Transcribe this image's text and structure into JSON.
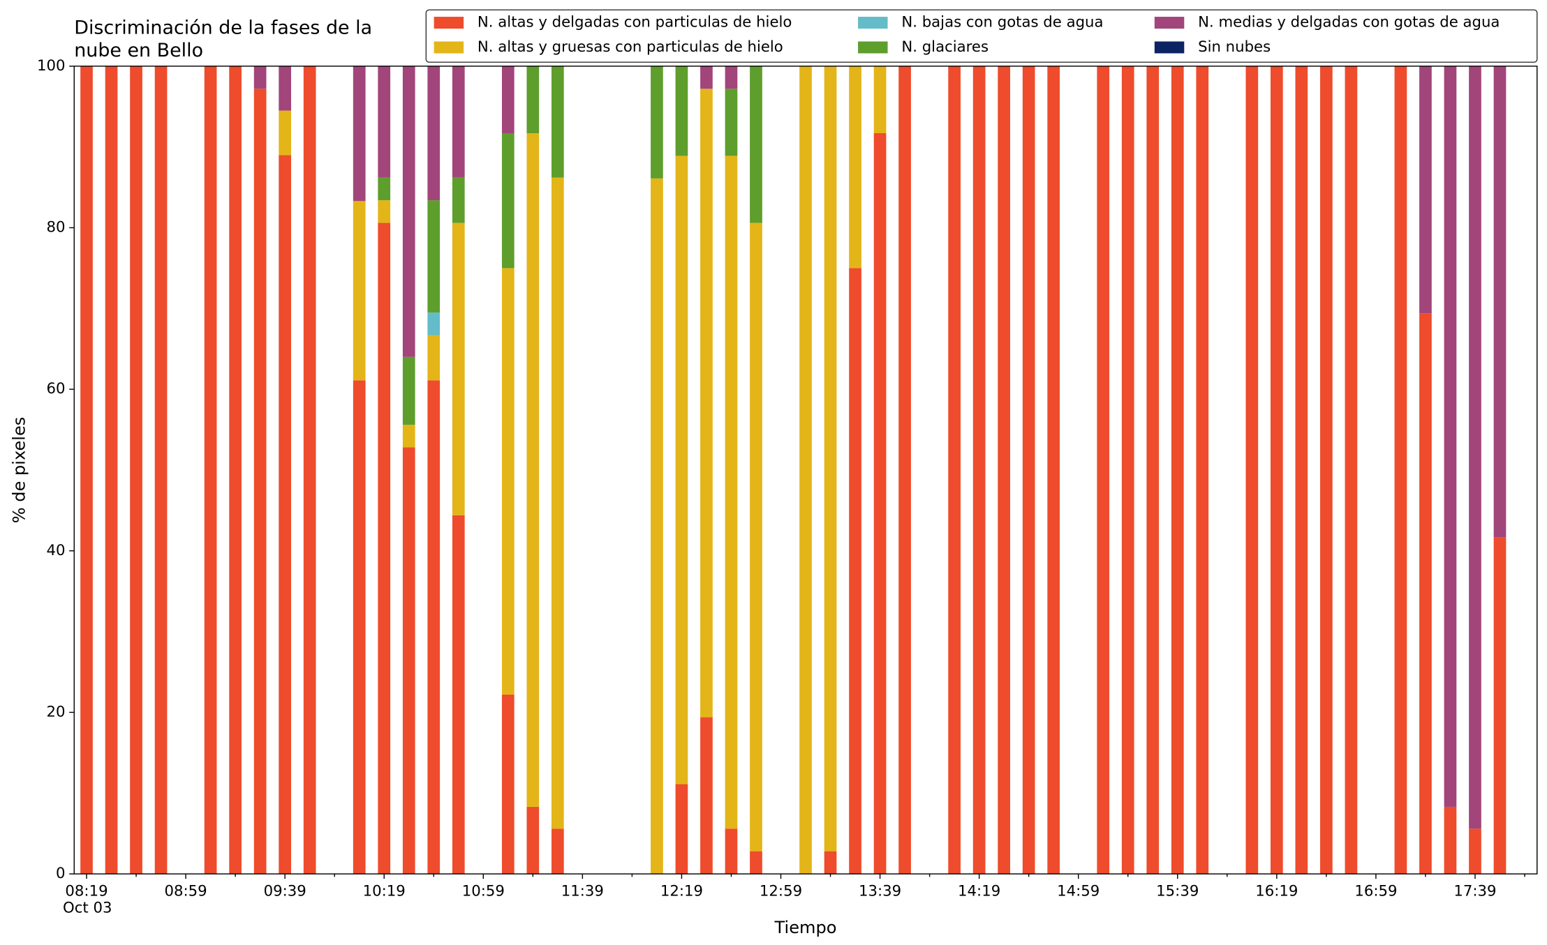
{
  "chart_data": {
    "type": "bar",
    "stacked": true,
    "title": [
      "Discriminación de la fases de la",
      "nube en Bello"
    ],
    "xlabel": "Tiempo",
    "ylabel": "% de pixeles",
    "xdate": "Oct 03",
    "x": [
      "08:19",
      "08:29",
      "08:39",
      "08:49",
      "08:59",
      "09:09",
      "09:19",
      "09:29",
      "09:39",
      "09:49",
      "09:59",
      "10:09",
      "10:19",
      "10:29",
      "10:39",
      "10:49",
      "10:59",
      "11:09",
      "11:19",
      "11:29",
      "11:39",
      "11:49",
      "11:59",
      "12:09",
      "12:19",
      "12:29",
      "12:39",
      "12:49",
      "12:59",
      "13:09",
      "13:19",
      "13:29",
      "13:39",
      "13:49",
      "13:59",
      "14:09",
      "14:19",
      "14:29",
      "14:39",
      "14:49",
      "14:59",
      "15:09",
      "15:19",
      "15:29",
      "15:39",
      "15:49",
      "15:59",
      "16:09",
      "16:19",
      "16:29",
      "16:39",
      "16:49",
      "16:59",
      "17:09",
      "17:19",
      "17:29",
      "17:39",
      "17:49"
    ],
    "xlim": [
      "08:14",
      "18:04"
    ],
    "xticks": [
      "08:19",
      "08:59",
      "09:39",
      "10:19",
      "10:59",
      "11:39",
      "12:19",
      "12:59",
      "13:39",
      "14:19",
      "14:59",
      "15:39",
      "16:19",
      "16:59",
      "17:39"
    ],
    "xticks_minor": [
      "08:39",
      "09:19",
      "09:59",
      "10:39",
      "11:19",
      "11:59",
      "12:39",
      "13:19",
      "13:59",
      "14:39",
      "15:19",
      "15:59",
      "16:39",
      "17:19",
      "17:59"
    ],
    "ylim": [
      0,
      100
    ],
    "yticks": [
      0,
      20,
      40,
      60,
      80,
      100
    ],
    "legend": "upper right",
    "series": [
      {
        "name": "N. altas y delgadas con particulas de hielo",
        "color": "#ee4c2c",
        "values": [
          100,
          100,
          100,
          100,
          null,
          100,
          100,
          97.2,
          89,
          100,
          null,
          61.1,
          80.6,
          52.8,
          61.1,
          44.4,
          null,
          22.2,
          8.3,
          5.6,
          null,
          null,
          null,
          0,
          11.1,
          19.4,
          5.6,
          2.8,
          null,
          0,
          2.8,
          75,
          91.7,
          100,
          null,
          100,
          100,
          100,
          100,
          100,
          null,
          100,
          100,
          100,
          100,
          100,
          null,
          100,
          100,
          100,
          100,
          100,
          null,
          100,
          69.4,
          8.3,
          5.6,
          41.7
        ]
      },
      {
        "name": "N. altas y gruesas con particulas de hielo",
        "color": "#e4b518",
        "values": [
          0,
          0,
          0,
          0,
          null,
          0,
          0,
          0,
          5.5,
          0,
          null,
          22.2,
          2.8,
          2.8,
          5.6,
          36.2,
          null,
          52.8,
          83.4,
          80.6,
          null,
          null,
          null,
          86.1,
          77.8,
          77.8,
          83.3,
          77.8,
          null,
          100,
          97.2,
          25,
          8.3,
          0,
          null,
          0,
          0,
          0,
          0,
          0,
          null,
          0,
          0,
          0,
          0,
          0,
          null,
          0,
          0,
          0,
          0,
          0,
          null,
          0,
          0,
          0,
          0,
          0
        ]
      },
      {
        "name": "N. bajas con gotas de agua",
        "color": "#63bcc8",
        "values": [
          0,
          0,
          0,
          0,
          null,
          0,
          0,
          0,
          0,
          0,
          null,
          0,
          0,
          0,
          2.8,
          0,
          null,
          0,
          0,
          0,
          null,
          null,
          null,
          0,
          0,
          0,
          0,
          0,
          null,
          0,
          0,
          0,
          0,
          0,
          null,
          0,
          0,
          0,
          0,
          0,
          null,
          0,
          0,
          0,
          0,
          0,
          null,
          0,
          0,
          0,
          0,
          0,
          null,
          0,
          0,
          0,
          0,
          0
        ]
      },
      {
        "name": "N. glaciares",
        "color": "#5e9e2c",
        "values": [
          0,
          0,
          0,
          0,
          null,
          0,
          0,
          0,
          0,
          0,
          null,
          0,
          2.8,
          8.4,
          13.9,
          5.6,
          null,
          16.7,
          8.3,
          13.8,
          null,
          null,
          null,
          13.9,
          11.1,
          0,
          8.3,
          19.4,
          null,
          0,
          0,
          0,
          0,
          0,
          null,
          0,
          0,
          0,
          0,
          0,
          null,
          0,
          0,
          0,
          0,
          0,
          null,
          0,
          0,
          0,
          0,
          0,
          null,
          0,
          0,
          0,
          0,
          0
        ]
      },
      {
        "name": "N. medias y delgadas con gotas de agua",
        "color": "#a2457b",
        "values": [
          0,
          0,
          0,
          0,
          null,
          0,
          0,
          2.8,
          5.5,
          0,
          null,
          16.7,
          13.8,
          36,
          16.6,
          13.8,
          null,
          8.3,
          0,
          0,
          null,
          null,
          null,
          0,
          0,
          2.8,
          2.8,
          0,
          null,
          0,
          0,
          0,
          0,
          0,
          null,
          0,
          0,
          0,
          0,
          0,
          null,
          0,
          0,
          0,
          0,
          0,
          null,
          0,
          0,
          0,
          0,
          0,
          null,
          0,
          30.6,
          91.7,
          94.4,
          58.3
        ]
      },
      {
        "name": "Sin nubes",
        "color": "#0c2461",
        "values": [
          0,
          0,
          0,
          0,
          null,
          0,
          0,
          0,
          0,
          0,
          null,
          0,
          0,
          0,
          0,
          0,
          null,
          0,
          0,
          0,
          null,
          null,
          null,
          0,
          0,
          0,
          0,
          0,
          null,
          0,
          0,
          0,
          0,
          0,
          null,
          0,
          0,
          0,
          0,
          0,
          null,
          0,
          0,
          0,
          0,
          0,
          null,
          0,
          0,
          0,
          0,
          0,
          null,
          0,
          0,
          0,
          0,
          0
        ]
      }
    ]
  }
}
